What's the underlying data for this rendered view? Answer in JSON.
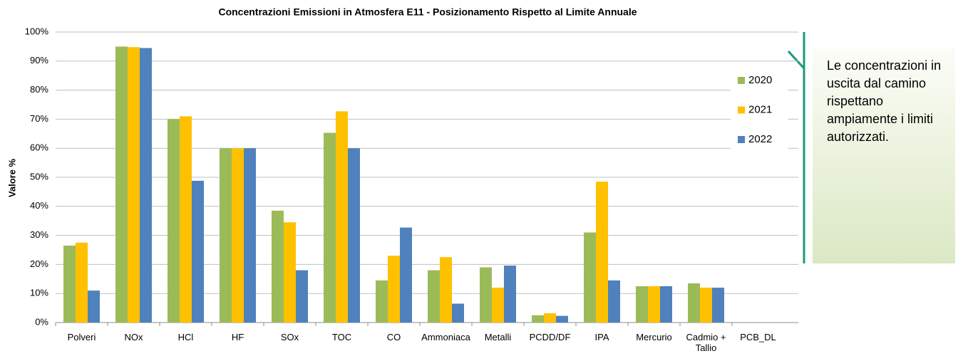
{
  "chart_data": {
    "type": "bar",
    "title": "Concentrazioni Emissioni in Atmosfera E11 - Posizionamento Rispetto al Limite Annuale",
    "y_label": "Valore %",
    "categories": [
      "Polveri",
      "NOx",
      "HCl",
      "HF",
      "SOx",
      "TOC",
      "CO",
      "Ammoniaca",
      "Metalli",
      "PCDD/DF",
      "IPA",
      "Mercurio",
      "Cadmio + Tallio",
      "PCB_DL"
    ],
    "series": [
      {
        "name": "2020",
        "color": "#9bbb59",
        "values": [
          26.5,
          95,
          70,
          60,
          38.5,
          65.3,
          14.5,
          18,
          19,
          2.5,
          31,
          12.5,
          13.5,
          null
        ]
      },
      {
        "name": "2021",
        "color": "#ffc000",
        "values": [
          27.5,
          94.8,
          71,
          60,
          34.5,
          72.7,
          23,
          22.5,
          12,
          3.2,
          48.5,
          12.5,
          12,
          null
        ]
      },
      {
        "name": "2022",
        "color": "#4f81bd",
        "values": [
          11,
          94.5,
          48.8,
          60,
          18,
          60,
          32.7,
          6.5,
          19.6,
          2.3,
          14.5,
          12.5,
          12,
          null
        ]
      }
    ],
    "ylim": [
      0,
      100
    ],
    "yticks": [
      {
        "value": 0,
        "label": "0%"
      },
      {
        "value": 10,
        "label": "10%"
      },
      {
        "value": 20,
        "label": "20%"
      },
      {
        "value": 30,
        "label": "30%"
      },
      {
        "value": 40,
        "label": "40%"
      },
      {
        "value": 50,
        "label": "50%"
      },
      {
        "value": 60,
        "label": "60%"
      },
      {
        "value": 70,
        "label": "70%"
      },
      {
        "value": 80,
        "label": "80%"
      },
      {
        "value": 90,
        "label": "90%"
      },
      {
        "value": 100,
        "label": "100%"
      }
    ],
    "grid": true,
    "legend": "upper right",
    "annotation": "Le concentrazioni in uscita dal camino rispettano ampiamente i limiti autorizzati."
  }
}
